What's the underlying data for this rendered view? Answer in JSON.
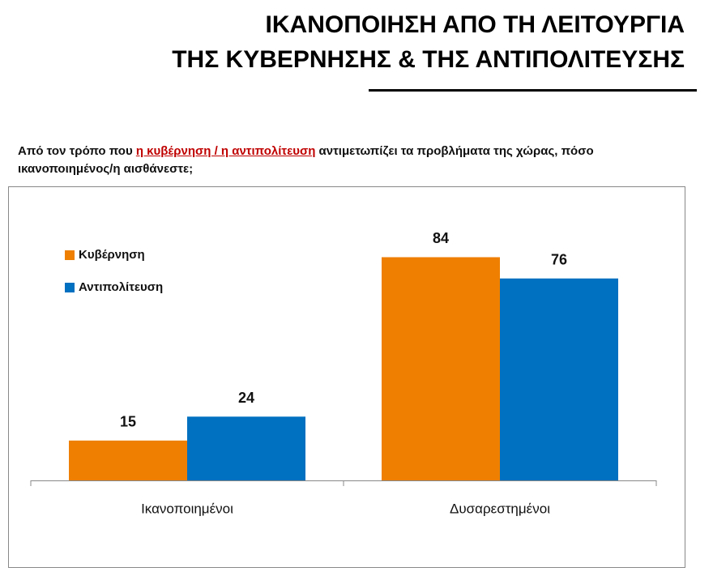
{
  "title_lines": [
    "ΙΚΑΝΟΠΟΙΗΣΗ ΑΠΟ ΤΗ ΛΕΙΤΟΥΡΓΙΑ",
    "ΤΗΣ ΚΥΒΕΡΝΗΣΗΣ & ΤΗΣ ΑΝΤΙΠΟΛΙΤΕΥΣΗΣ"
  ],
  "question": {
    "before": "Από τον τρόπο που ",
    "highlight": "η κυβέρνηση / η αντιπολίτευση",
    "after": " αντιμετωπίζει τα προβλήματα της χώρας, πόσο ικανοποιημένος/η αισθάνεστε;"
  },
  "chart_data": {
    "type": "bar",
    "categories": [
      "Ικανοποιημένοι",
      "Δυσαρεστημένοι"
    ],
    "series": [
      {
        "name": "Κυβέρνηση",
        "color": "#EE7F00",
        "values": [
          15,
          84
        ]
      },
      {
        "name": "Αντιπολίτευση",
        "color": "#0070C0",
        "values": [
          24,
          76
        ]
      }
    ],
    "ylim": [
      0,
      100
    ],
    "legend": "top-left"
  }
}
